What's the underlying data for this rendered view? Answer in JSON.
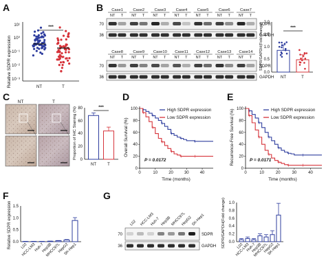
{
  "panels": [
    "A",
    "B",
    "C",
    "D",
    "E",
    "F",
    "G"
  ],
  "colors": {
    "blue": "#2e3d9e",
    "red": "#d6333a",
    "gray": "#777777"
  },
  "panel_a": {
    "ylabel": "Relative SDPR expression",
    "groups": [
      "NT",
      "T"
    ],
    "yticks": [
      "10¹",
      "10⁰",
      "10⁻¹",
      "10⁻²",
      "10⁻³"
    ],
    "significance": "***"
  },
  "panel_b": {
    "cases_top": [
      "Case1",
      "Case2",
      "Case3",
      "Case4",
      "Case5",
      "Case6",
      "Case7"
    ],
    "cases_bottom": [
      "Case8",
      "Case9",
      "Case10",
      "Case11",
      "Case12",
      "Case13",
      "Case14"
    ],
    "lane_labels": [
      "NT",
      "T"
    ],
    "bands": [
      "SDPR",
      "GAPDH"
    ],
    "markers": [
      "70",
      "36"
    ],
    "bar_ylabel": "SDPR/GAPDH(Fold change)",
    "bar_yticks": [
      "2.0",
      "1.5",
      "1.0",
      "0.5",
      "0.0"
    ],
    "significance": "***"
  },
  "panel_c": {
    "images": [
      "NT",
      "T"
    ],
    "ylabel": "Proportion of IHC Staining (%)",
    "yticks": [
      "80",
      "60",
      "40",
      "20",
      "0"
    ],
    "significance": "***"
  },
  "panel_d": {
    "ylabel": "Overall Survival (%)",
    "xlabel": "Time (months)",
    "legend": [
      "High SDPR expression",
      "Low SDPR expression"
    ],
    "pvalue": "P = 0.0172",
    "yticks": [
      "100",
      "80",
      "60",
      "40",
      "20",
      "0"
    ],
    "xticks": [
      "0",
      "10",
      "20",
      "30",
      "40"
    ]
  },
  "panel_e": {
    "ylabel": "Recurrence-Free Survival (%)",
    "xlabel": "Time (months)",
    "legend": [
      "High SDPR expression",
      "Low SDPR expression"
    ],
    "pvalue": "P = 0.0171",
    "yticks": [
      "100",
      "80",
      "60",
      "40",
      "20",
      "0"
    ],
    "xticks": [
      "0",
      "10",
      "20",
      "30",
      "40"
    ]
  },
  "panel_f": {
    "ylabel": "Relative SDPR expression",
    "yticks": [
      "1.5",
      "1.0",
      "0.5",
      "0.0"
    ],
    "cell_lines": [
      "L02",
      "HCC-LM3",
      "Huh-7",
      "Hep3B",
      "MHCC97L",
      "HepG2",
      "SK-Hep1"
    ]
  },
  "panel_g": {
    "cell_lines": [
      "L02",
      "HCC-LM3",
      "Huh-7",
      "Hep3B",
      "MHCC97L",
      "HepG2",
      "SK-Hep1"
    ],
    "bands": [
      "SDPR",
      "GAPDH"
    ],
    "markers": [
      "70",
      "36"
    ],
    "bar_ylabel": "SDPR/GAPDH(Fold change)",
    "bar_yticks": [
      "1.0",
      "0.8",
      "0.6",
      "0.4",
      "0.2",
      "0.0"
    ]
  },
  "chart_data": [
    {
      "type": "scatter",
      "panel": "A",
      "ylabel": "Relative SDPR expression",
      "categories": [
        "NT",
        "T"
      ],
      "yscale": "log",
      "ylim": [
        0.001,
        10
      ],
      "series": [
        {
          "name": "NT",
          "median": 0.9
        },
        {
          "name": "T",
          "median": 0.25
        }
      ]
    },
    {
      "type": "bar",
      "panel": "B",
      "ylabel": "SDPR/GAPDH(Fold change)",
      "categories": [
        "NT",
        "T"
      ],
      "values": [
        0.88,
        0.5
      ],
      "errors": [
        0.22,
        0.2
      ],
      "ylim": [
        0,
        2
      ]
    },
    {
      "type": "bar",
      "panel": "C",
      "ylabel": "Proportion of IHC Staining (%)",
      "categories": [
        "NT",
        "T"
      ],
      "values": [
        68,
        44
      ],
      "errors": [
        4,
        6
      ],
      "ylim": [
        0,
        80
      ]
    },
    {
      "type": "line",
      "panel": "D",
      "ylabel": "Overall Survival (%)",
      "xlabel": "Time (months)",
      "xlim": [
        0,
        47
      ],
      "ylim": [
        0,
        100
      ],
      "series": [
        {
          "name": "High SDPR expression",
          "x": [
            0,
            2,
            4,
            6,
            8,
            10,
            12,
            14,
            16,
            18,
            20,
            22,
            24,
            26,
            28,
            30,
            35,
            40,
            47
          ],
          "y": [
            100,
            98,
            95,
            92,
            88,
            84,
            80,
            75,
            70,
            65,
            58,
            55,
            52,
            50,
            48,
            46,
            45,
            45,
            45
          ]
        },
        {
          "name": "Low SDPR expression",
          "x": [
            0,
            2,
            4,
            6,
            8,
            10,
            12,
            14,
            16,
            18,
            20,
            22,
            24,
            26,
            28,
            30,
            35,
            40,
            47
          ],
          "y": [
            100,
            93,
            86,
            78,
            68,
            58,
            50,
            44,
            38,
            33,
            28,
            24,
            22,
            20,
            20,
            20,
            20,
            20,
            20
          ]
        }
      ]
    },
    {
      "type": "line",
      "panel": "E",
      "ylabel": "Recurrence-Free Survival (%)",
      "xlabel": "Time (months)",
      "xlim": [
        0,
        47
      ],
      "ylim": [
        0,
        100
      ],
      "series": [
        {
          "name": "High SDPR expression",
          "x": [
            0,
            2,
            4,
            6,
            8,
            10,
            12,
            14,
            16,
            18,
            20,
            22,
            24,
            26,
            28,
            30,
            35,
            40,
            47
          ],
          "y": [
            100,
            96,
            90,
            84,
            76,
            68,
            60,
            52,
            46,
            40,
            34,
            30,
            27,
            25,
            24,
            22,
            22,
            22,
            22
          ]
        },
        {
          "name": "Low SDPR expression",
          "x": [
            0,
            2,
            4,
            6,
            8,
            10,
            12,
            14,
            16,
            18,
            20,
            22,
            24,
            26,
            28,
            30,
            35,
            40,
            47
          ],
          "y": [
            100,
            88,
            76,
            64,
            52,
            40,
            30,
            23,
            17,
            13,
            10,
            8,
            6,
            5,
            5,
            5,
            5,
            5,
            5
          ]
        }
      ]
    },
    {
      "type": "bar",
      "panel": "F",
      "ylabel": "Relative SDPR expression",
      "categories": [
        "L02",
        "HCC-LM3",
        "Huh-7",
        "Hep3B",
        "MHCC97L",
        "HepG2",
        "SK-Hep1"
      ],
      "values": [
        0.01,
        0.01,
        0.01,
        0.02,
        0.04,
        0.07,
        0.89
      ],
      "errors": [
        0.005,
        0.005,
        0.005,
        0.005,
        0.01,
        0.02,
        0.12
      ],
      "ylim": [
        0,
        1.5
      ]
    },
    {
      "type": "bar",
      "panel": "G",
      "ylabel": "SDPR/GAPDH(Fold change)",
      "categories": [
        "L02",
        "HCC-LM3",
        "Huh-7",
        "Hep3B",
        "MHCC97L",
        "HepG2",
        "SK-Hep1"
      ],
      "values": [
        0.05,
        0.08,
        0.05,
        0.15,
        0.12,
        0.18,
        0.68
      ],
      "errors": [
        0.03,
        0.04,
        0.03,
        0.05,
        0.06,
        0.1,
        0.3
      ],
      "ylim": [
        0,
        1.0
      ]
    }
  ]
}
